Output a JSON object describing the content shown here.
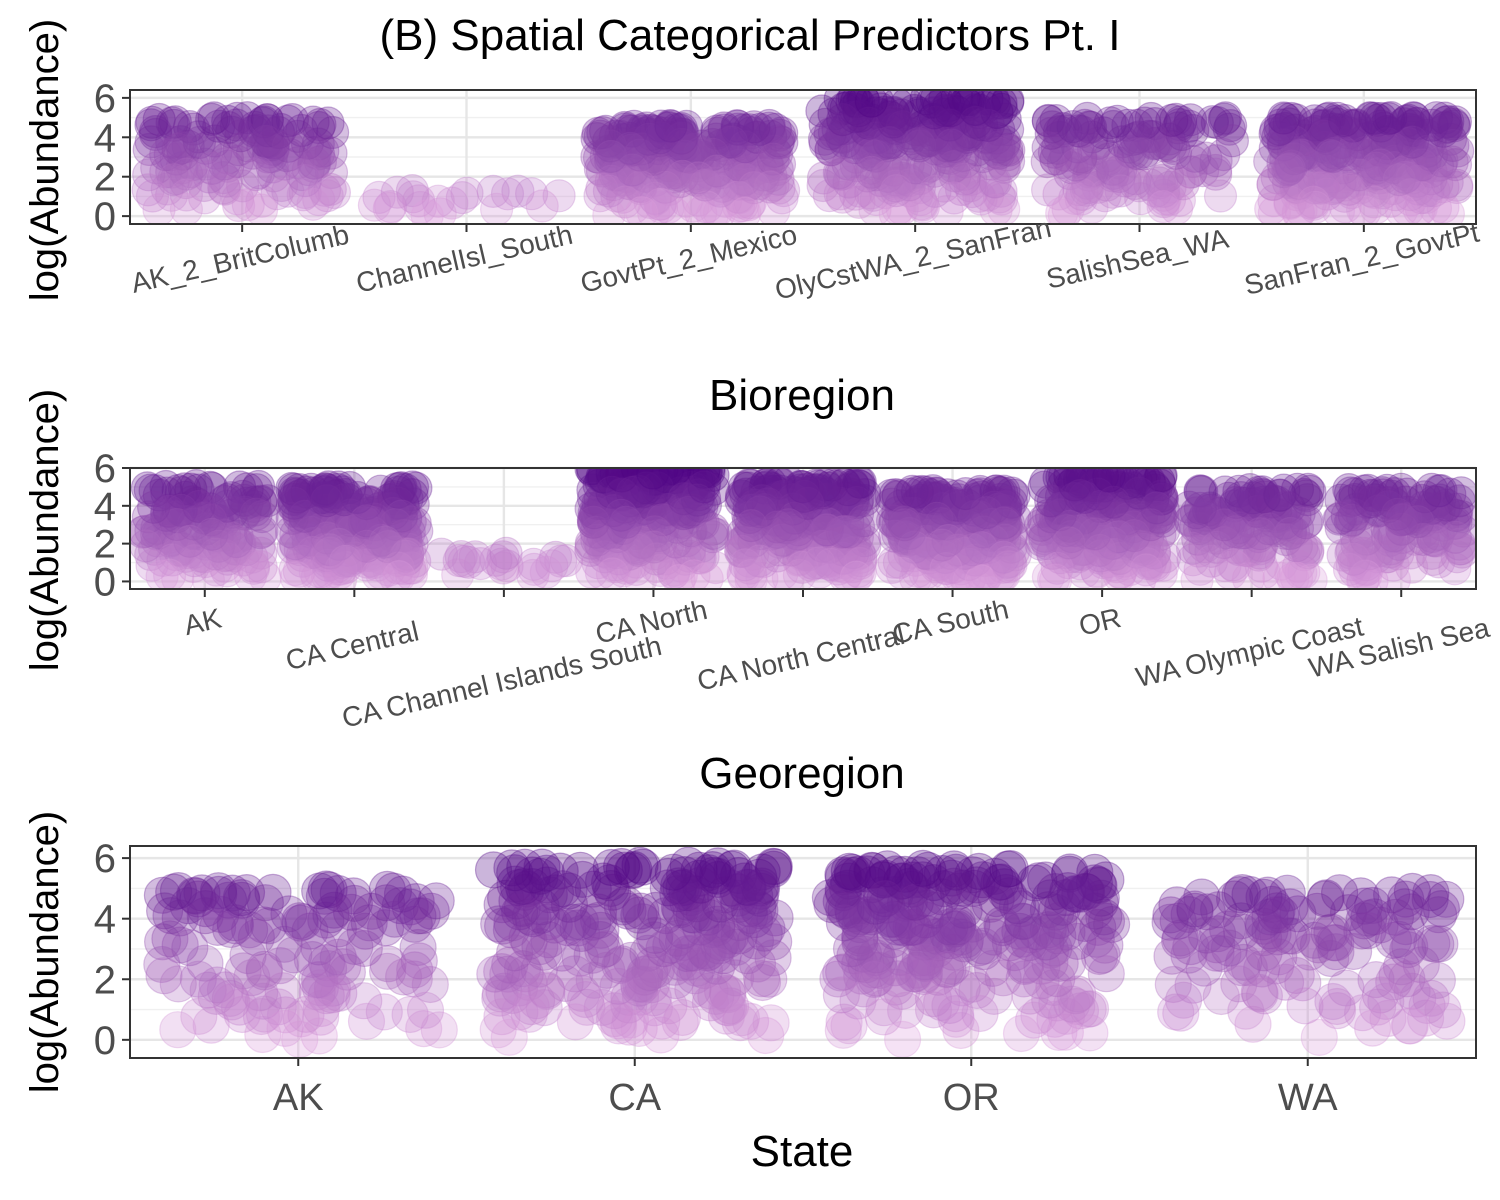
{
  "chart_data": [
    {
      "type": "scatter",
      "title": "(B) Spatial Categorical Predictors Pt. I",
      "ylabel": "log(Abundance)",
      "xlabel": "",
      "ylim": [
        -0.4,
        6.4
      ],
      "yticks": [
        0,
        2,
        4,
        6
      ],
      "grid": true,
      "legend": "none",
      "x_label_rotation": 13,
      "categories": [
        "AK_2_BritColumb",
        "ChannelIsl_South",
        "GovtPt_2_Mexico",
        "OlyCstWA_2_SanFran",
        "SalishSea_WA",
        "SanFran_2_GovtPt"
      ],
      "point_ranges": [
        {
          "category": "AK_2_BritColumb",
          "y_min": 0,
          "y_max": 5.0,
          "density": "medium"
        },
        {
          "category": "ChannelIsl_South",
          "y_min": 0,
          "y_max": 1.3,
          "density": "low"
        },
        {
          "category": "GovtPt_2_Mexico",
          "y_min": 0,
          "y_max": 4.6,
          "density": "high"
        },
        {
          "category": "OlyCstWA_2_SanFran",
          "y_min": 0,
          "y_max": 6.0,
          "density": "high"
        },
        {
          "category": "SalishSea_WA",
          "y_min": 0,
          "y_max": 5.0,
          "density": "medium"
        },
        {
          "category": "SanFran_2_GovtPt",
          "y_min": 0,
          "y_max": 5.0,
          "density": "high"
        }
      ]
    },
    {
      "type": "scatter",
      "title": "Bioregion",
      "ylabel": "log(Abundance)",
      "xlabel": "",
      "ylim": [
        -0.4,
        6.0
      ],
      "yticks": [
        0,
        2,
        4,
        6
      ],
      "grid": true,
      "legend": "none",
      "x_label_rotation": 13,
      "categories": [
        "AK",
        "CA Central",
        "CA Channel Islands South",
        "CA North",
        "CA North Central",
        "CA South",
        "OR",
        "WA Olympic Coast",
        "WA Salish Sea"
      ],
      "point_ranges": [
        {
          "category": "AK",
          "y_min": 0,
          "y_max": 5.1,
          "density": "medium"
        },
        {
          "category": "CA Central",
          "y_min": 0,
          "y_max": 5.0,
          "density": "high"
        },
        {
          "category": "CA Channel Islands South",
          "y_min": 0,
          "y_max": 1.5,
          "density": "low"
        },
        {
          "category": "CA North",
          "y_min": 0,
          "y_max": 6.0,
          "density": "high"
        },
        {
          "category": "CA North Central",
          "y_min": 0,
          "y_max": 5.3,
          "density": "high"
        },
        {
          "category": "CA South",
          "y_min": 0,
          "y_max": 4.8,
          "density": "high"
        },
        {
          "category": "OR",
          "y_min": 0,
          "y_max": 5.6,
          "density": "high"
        },
        {
          "category": "WA Olympic Coast",
          "y_min": 0,
          "y_max": 4.9,
          "density": "medium"
        },
        {
          "category": "WA Salish Sea",
          "y_min": 0,
          "y_max": 4.9,
          "density": "medium"
        }
      ]
    },
    {
      "type": "scatter",
      "title": "Georegion",
      "ylabel": "log(Abundance)",
      "xlabel": "State",
      "ylim": [
        -0.6,
        6.4
      ],
      "yticks": [
        0,
        2,
        4,
        6
      ],
      "grid": true,
      "legend": "none",
      "x_label_rotation": 0,
      "categories": [
        "AK",
        "CA",
        "OR",
        "WA"
      ],
      "point_ranges": [
        {
          "category": "AK",
          "y_min": 0,
          "y_max": 5.0,
          "density": "medium"
        },
        {
          "category": "CA",
          "y_min": 0,
          "y_max": 5.8,
          "density": "high"
        },
        {
          "category": "OR",
          "y_min": 0,
          "y_max": 5.7,
          "density": "high"
        },
        {
          "category": "WA",
          "y_min": 0,
          "y_max": 4.9,
          "density": "medium"
        }
      ]
    }
  ],
  "colors": {
    "low": "#dda0dd",
    "high": "#4b0082",
    "point_alpha": 0.3,
    "panel_border": "#333333",
    "grid": "#ebebeb"
  }
}
